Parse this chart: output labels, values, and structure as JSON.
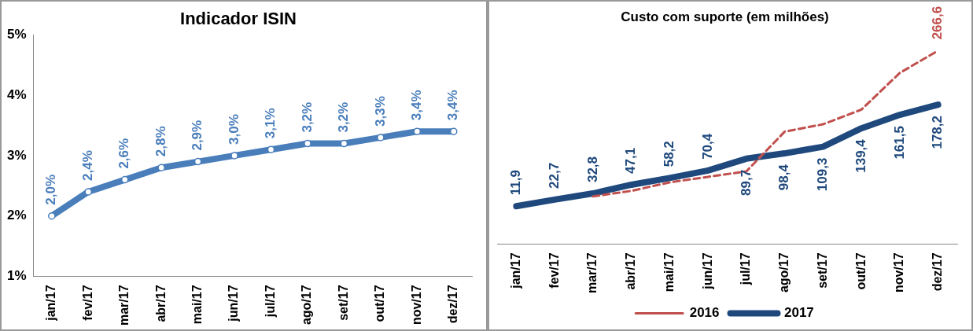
{
  "chart_data": [
    {
      "type": "line",
      "title": "Indicador ISIN",
      "categories": [
        "jan/17",
        "fev/17",
        "mar/17",
        "abr/17",
        "mai/17",
        "jun/17",
        "jul/17",
        "ago/17",
        "set/17",
        "out/17",
        "nov/17",
        "dez/17"
      ],
      "series": [
        {
          "color": "#4a7ebb",
          "values": [
            2.0,
            2.4,
            2.6,
            2.8,
            2.9,
            3.0,
            3.1,
            3.2,
            3.2,
            3.3,
            3.4,
            3.4
          ],
          "value_labels": [
            "2,0%",
            "2,4%",
            "2,6%",
            "2,8%",
            "2,9%",
            "3,0%",
            "3,1%",
            "3,2%",
            "3,2%",
            "3,3%",
            "3,4%",
            "3,4%"
          ]
        }
      ],
      "ylim": [
        1,
        5
      ],
      "yticks": [
        {
          "value": 1,
          "label": "1%"
        },
        {
          "value": 2,
          "label": "2%"
        },
        {
          "value": 3,
          "label": "3%"
        },
        {
          "value": 4,
          "label": "4%"
        },
        {
          "value": 5,
          "label": "5%"
        }
      ],
      "grid": false,
      "legend": false,
      "marker": "circle"
    },
    {
      "type": "line",
      "title": "Custo com suporte (em milhões)",
      "categories": [
        "jan/17",
        "fev/17",
        "mar/17",
        "abr/17",
        "mai/17",
        "jun/17",
        "jul/17",
        "ago/17",
        "set/17",
        "out/17",
        "nov/17",
        "dez/17"
      ],
      "series": [
        {
          "name": "2016",
          "color": "#c0504d",
          "line_style": "dashed",
          "values": [
            null,
            null,
            28,
            37,
            51,
            60,
            69,
            134,
            146,
            170,
            230,
            266.6
          ],
          "value_labels": [
            null,
            null,
            null,
            null,
            null,
            null,
            null,
            null,
            null,
            null,
            null,
            "266,6"
          ]
        },
        {
          "name": "2017",
          "color": "#1f497d",
          "line_style": "solid",
          "values": [
            11.9,
            22.7,
            32.8,
            47.1,
            58.2,
            70.4,
            89.7,
            98.4,
            109.3,
            139.4,
            161.5,
            178.2
          ],
          "value_labels": [
            "11,9",
            "22,7",
            "32,8",
            "47,1",
            "58,2",
            "70,4",
            "89,7",
            "98,4",
            "109,3",
            "139,4",
            "161,5",
            "178,2"
          ]
        }
      ],
      "tick_labels": "x",
      "grid": false,
      "legend": "bottom",
      "marker": "none"
    }
  ]
}
